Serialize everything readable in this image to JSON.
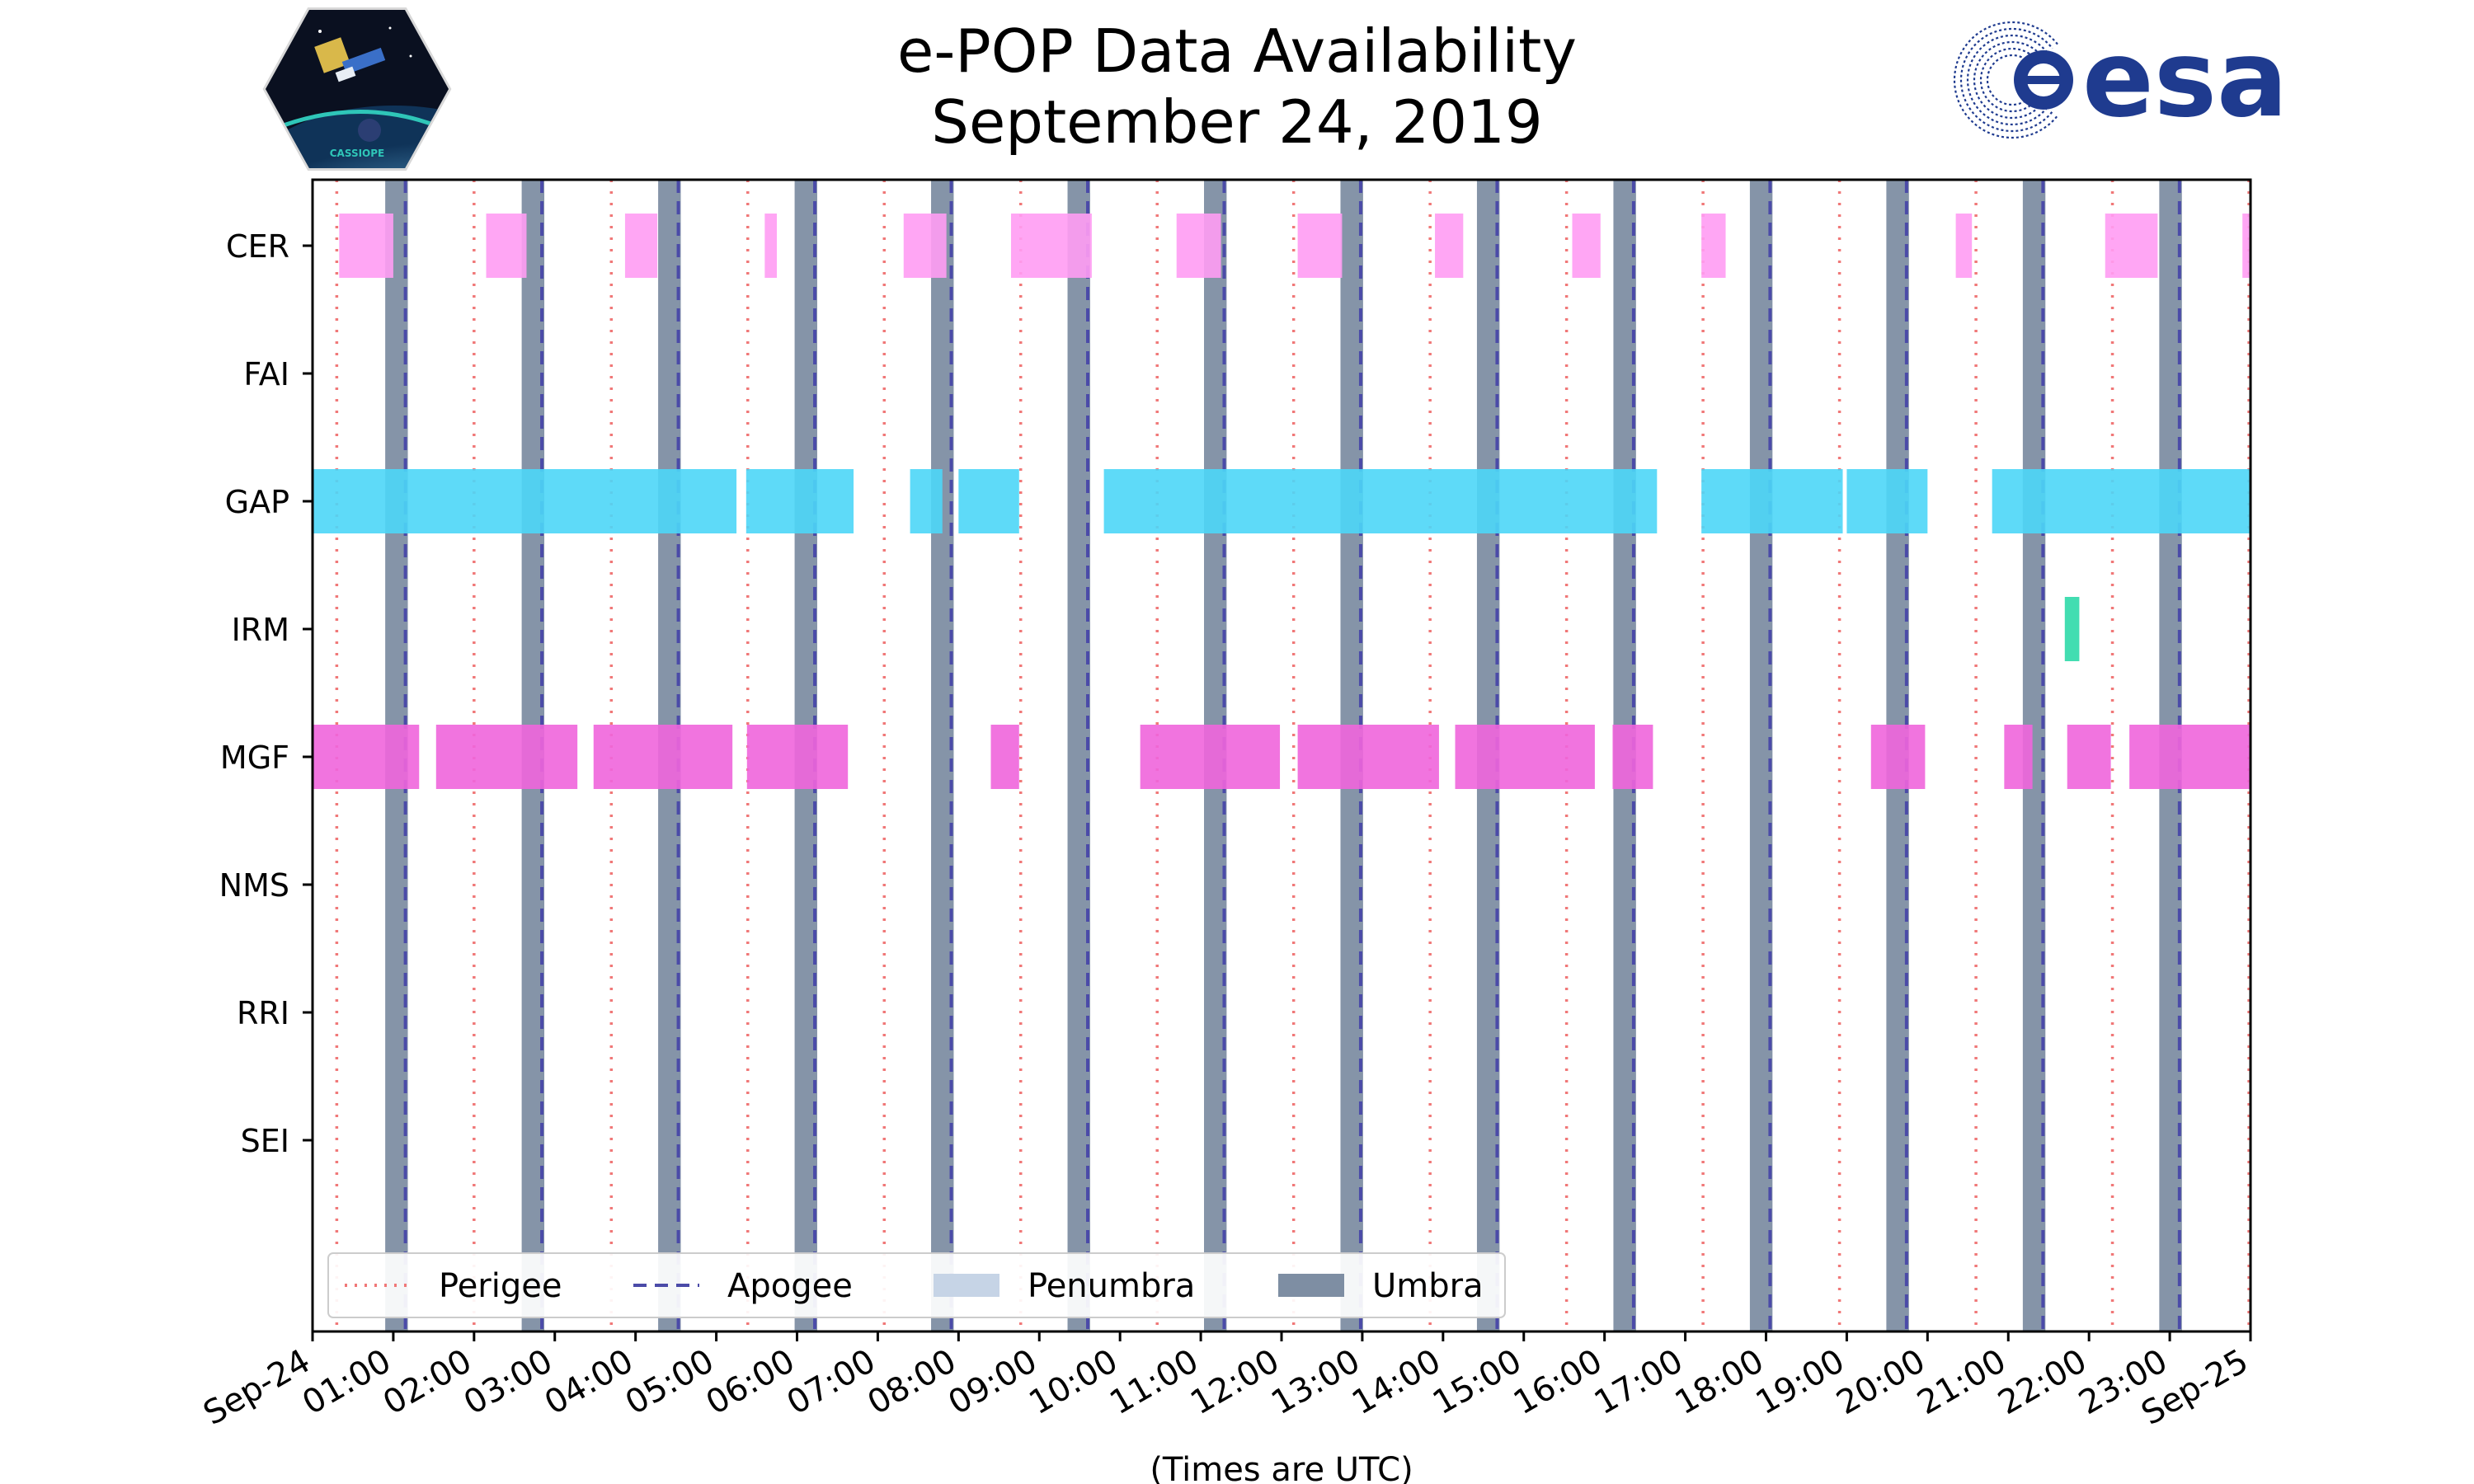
{
  "chart_data": {
    "type": "timeline",
    "title": [
      "e-POP Data Availability",
      "September 24, 2019"
    ],
    "xlabel": "(Times are UTC)",
    "x_unit": "hours UTC",
    "xlim": [
      0,
      24
    ],
    "x_ticks": [
      {
        "value": 0,
        "label": "Sep-24"
      },
      {
        "value": 1,
        "label": "01:00"
      },
      {
        "value": 2,
        "label": "02:00"
      },
      {
        "value": 3,
        "label": "03:00"
      },
      {
        "value": 4,
        "label": "04:00"
      },
      {
        "value": 5,
        "label": "05:00"
      },
      {
        "value": 6,
        "label": "06:00"
      },
      {
        "value": 7,
        "label": "07:00"
      },
      {
        "value": 8,
        "label": "08:00"
      },
      {
        "value": 9,
        "label": "09:00"
      },
      {
        "value": 10,
        "label": "10:00"
      },
      {
        "value": 11,
        "label": "11:00"
      },
      {
        "value": 12,
        "label": "12:00"
      },
      {
        "value": 13,
        "label": "13:00"
      },
      {
        "value": 14,
        "label": "14:00"
      },
      {
        "value": 15,
        "label": "15:00"
      },
      {
        "value": 16,
        "label": "16:00"
      },
      {
        "value": 17,
        "label": "17:00"
      },
      {
        "value": 18,
        "label": "18:00"
      },
      {
        "value": 19,
        "label": "19:00"
      },
      {
        "value": 20,
        "label": "20:00"
      },
      {
        "value": 21,
        "label": "21:00"
      },
      {
        "value": 22,
        "label": "22:00"
      },
      {
        "value": 23,
        "label": "23:00"
      },
      {
        "value": 24,
        "label": "Sep-25"
      }
    ],
    "instruments": [
      {
        "name": "CER",
        "color": "#ff9cf3",
        "intervals": [
          [
            0.33,
            1.0
          ],
          [
            2.15,
            2.65
          ],
          [
            3.87,
            4.27
          ],
          [
            5.6,
            5.75
          ],
          [
            7.32,
            7.85
          ],
          [
            8.65,
            9.65
          ],
          [
            10.7,
            11.25
          ],
          [
            12.2,
            12.75
          ],
          [
            13.9,
            14.25
          ],
          [
            15.6,
            15.95
          ],
          [
            17.2,
            17.5
          ],
          [
            20.35,
            20.55
          ],
          [
            22.2,
            22.85
          ],
          [
            23.9,
            24.0
          ]
        ]
      },
      {
        "name": "FAI",
        "color": "#7f7f7f",
        "intervals": []
      },
      {
        "name": "GAP",
        "color": "#4dd6f7",
        "intervals": [
          [
            0.0,
            5.25
          ],
          [
            5.37,
            6.7
          ],
          [
            7.4,
            7.8
          ],
          [
            8.0,
            8.75
          ],
          [
            9.8,
            16.65
          ],
          [
            17.2,
            18.95
          ],
          [
            19.0,
            20.0
          ],
          [
            20.8,
            24.0
          ]
        ]
      },
      {
        "name": "IRM",
        "color": "#2ed9a8",
        "intervals": [
          [
            21.7,
            21.88
          ]
        ]
      },
      {
        "name": "MGF",
        "color": "#f065dc",
        "intervals": [
          [
            0.0,
            1.32
          ],
          [
            1.53,
            3.28
          ],
          [
            3.48,
            5.2
          ],
          [
            5.38,
            6.63
          ],
          [
            8.4,
            8.75
          ],
          [
            10.25,
            11.98
          ],
          [
            12.2,
            13.95
          ],
          [
            14.15,
            15.88
          ],
          [
            16.1,
            16.6
          ],
          [
            19.3,
            19.97
          ],
          [
            20.95,
            21.3
          ],
          [
            21.73,
            22.27
          ],
          [
            22.5,
            24.0
          ]
        ]
      },
      {
        "name": "NMS",
        "color": "#7f7f7f",
        "intervals": []
      },
      {
        "name": "RRI",
        "color": "#7f7f7f",
        "intervals": []
      },
      {
        "name": "SEI",
        "color": "#7f7f7f",
        "intervals": []
      }
    ],
    "perigees": [
      0.3,
      2.0,
      3.7,
      5.39,
      7.08,
      8.77,
      10.46,
      12.15,
      13.84,
      15.53,
      17.22,
      18.91,
      20.6,
      22.29,
      23.98
    ],
    "apogees": [
      1.15,
      2.84,
      4.53,
      6.22,
      7.91,
      9.6,
      11.29,
      12.98,
      14.67,
      16.36,
      18.05,
      19.74,
      21.43,
      23.12
    ],
    "umbra": [
      [
        0.9,
        1.18
      ],
      [
        2.59,
        2.87
      ],
      [
        4.28,
        4.56
      ],
      [
        5.97,
        6.25
      ],
      [
        7.66,
        7.94
      ],
      [
        9.35,
        9.63
      ],
      [
        11.04,
        11.32
      ],
      [
        12.73,
        13.01
      ],
      [
        14.42,
        14.7
      ],
      [
        16.11,
        16.39
      ],
      [
        17.8,
        18.08
      ],
      [
        19.49,
        19.77
      ],
      [
        21.18,
        21.46
      ],
      [
        22.87,
        23.15
      ]
    ],
    "legend": {
      "location": "lower-left",
      "entries": [
        {
          "label": "Perigee",
          "style": "dotted",
          "color": "#f07878"
        },
        {
          "label": "Apogee",
          "style": "dashed",
          "color": "#4b4ba8"
        },
        {
          "label": "Penumbra",
          "style": "patch",
          "color": "#c6d4e6"
        },
        {
          "label": "Umbra",
          "style": "patch",
          "color": "#7e8ea3"
        }
      ]
    }
  },
  "logos": {
    "left": {
      "name": "CASSIOPE mission patch",
      "text": "CASSIOPE"
    },
    "right": {
      "name": "esa logo",
      "text": "esa",
      "color": "#1f3b8f"
    }
  }
}
